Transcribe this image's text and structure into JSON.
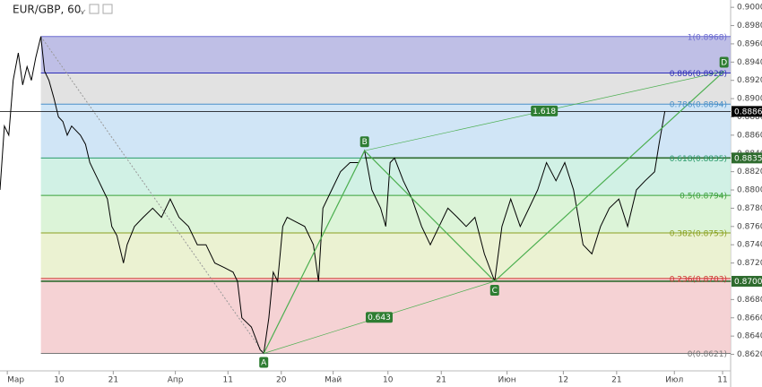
{
  "chart_data": {
    "type": "line",
    "title": "EUR/GBP, 60,",
    "color": "#000000",
    "xlim": [
      0,
      100
    ],
    "ylim": [
      0.8596,
      0.9008
    ],
    "xticks": [
      {
        "value": 1,
        "label": "Мар"
      },
      {
        "value": 8.1,
        "label": "10"
      },
      {
        "value": 15.5,
        "label": "21"
      },
      {
        "value": 24,
        "label": "Апр"
      },
      {
        "value": 31.2,
        "label": "11"
      },
      {
        "value": 38.5,
        "label": "20"
      },
      {
        "value": 45.6,
        "label": "Май"
      },
      {
        "value": 53.1,
        "label": "10"
      },
      {
        "value": 60.4,
        "label": "21"
      },
      {
        "value": 69.4,
        "label": "Июн"
      },
      {
        "value": 77.1,
        "label": "12"
      },
      {
        "value": 84.4,
        "label": "21"
      },
      {
        "value": 92.3,
        "label": "Июл"
      },
      {
        "value": 98.9,
        "label": "11"
      }
    ],
    "yticks": [
      {
        "value": 0.862,
        "label": "0.8620"
      },
      {
        "value": 0.864,
        "label": "0.8640"
      },
      {
        "value": 0.866,
        "label": "0.8660"
      },
      {
        "value": 0.868,
        "label": "0.8680"
      },
      {
        "value": 0.87,
        "label": "0.8700"
      },
      {
        "value": 0.872,
        "label": "0.8720"
      },
      {
        "value": 0.874,
        "label": "0.8740"
      },
      {
        "value": 0.876,
        "label": "0.8760"
      },
      {
        "value": 0.878,
        "label": "0.8780"
      },
      {
        "value": 0.88,
        "label": "0.8800"
      },
      {
        "value": 0.882,
        "label": "0.8820"
      },
      {
        "value": 0.884,
        "label": "0.8840"
      },
      {
        "value": 0.886,
        "label": "0.8860"
      },
      {
        "value": 0.888,
        "label": "0.8880"
      },
      {
        "value": 0.89,
        "label": "0.8900"
      },
      {
        "value": 0.892,
        "label": "0.8920"
      },
      {
        "value": 0.894,
        "label": "0.8940"
      },
      {
        "value": 0.896,
        "label": "0.8960"
      },
      {
        "value": 0.898,
        "label": "0.8980"
      },
      {
        "value": 0.9,
        "label": "0.9000"
      }
    ],
    "x": [
      0,
      0.6,
      1.2,
      1.8,
      2.5,
      3.1,
      3.7,
      4.3,
      4.9,
      5.6,
      6.1,
      6.7,
      7.4,
      8,
      8.6,
      9.2,
      9.8,
      11,
      11.7,
      12.3,
      12.9,
      13.5,
      14.1,
      14.7,
      15.3,
      16,
      16.6,
      16.9,
      17.4,
      18.4,
      19.6,
      20.9,
      22.1,
      23.3,
      23.9,
      24.5,
      25.8,
      27,
      28.2,
      29.4,
      30.7,
      31.9,
      32.5,
      33.1,
      34.4,
      35.6,
      36.1,
      36.8,
      37.4,
      38,
      38.7,
      39.3,
      40.5,
      41.7,
      42.9,
      43.6,
      44.2,
      45.4,
      46.6,
      47.9,
      49.1,
      49.9,
      50.9,
      52.1,
      52.8,
      53.4,
      54,
      55.2,
      56.4,
      57.7,
      58.9,
      60.1,
      61.3,
      62.6,
      63.8,
      65,
      66.3,
      67.7,
      68.7,
      69.9,
      71.2,
      72.4,
      73.6,
      74.8,
      76.1,
      77.3,
      78.5,
      79.8,
      81,
      82.2,
      83.4,
      84.7,
      85.9,
      87.1,
      88.3,
      89.6,
      90.2,
      91
    ],
    "values": [
      0.88,
      0.887,
      0.886,
      0.892,
      0.895,
      0.8915,
      0.8935,
      0.892,
      0.8945,
      0.8968,
      0.893,
      0.892,
      0.89,
      0.888,
      0.8875,
      0.886,
      0.887,
      0.886,
      0.885,
      0.883,
      0.882,
      0.881,
      0.88,
      0.879,
      0.876,
      0.875,
      0.873,
      0.872,
      0.874,
      0.876,
      0.877,
      0.878,
      0.877,
      0.879,
      0.878,
      0.877,
      0.876,
      0.874,
      0.874,
      0.872,
      0.8715,
      0.871,
      0.87,
      0.866,
      0.865,
      0.8625,
      0.8621,
      0.866,
      0.871,
      0.87,
      0.876,
      0.877,
      0.8765,
      0.876,
      0.874,
      0.87,
      0.878,
      0.88,
      0.882,
      0.883,
      0.883,
      0.8843,
      0.88,
      0.878,
      0.876,
      0.883,
      0.8835,
      0.881,
      0.879,
      0.876,
      0.874,
      0.876,
      0.878,
      0.877,
      0.876,
      0.877,
      0.873,
      0.87,
      0.876,
      0.879,
      0.876,
      0.878,
      0.88,
      0.883,
      0.881,
      0.883,
      0.88,
      0.874,
      0.873,
      0.876,
      0.878,
      0.879,
      0.876,
      0.88,
      0.881,
      0.882,
      0.885,
      0.8886
    ],
    "fib_x": [
      5.6,
      100
    ],
    "fib_levels": [
      {
        "label": "1(0.8968)",
        "price": 0.8968,
        "color": "#6a6ad0",
        "zone_color": "#b4b4e2"
      },
      {
        "label": "0.886(0.8928)",
        "price": 0.8928,
        "color": "#2e2eb8",
        "zone_color": "#dddddd"
      },
      {
        "label": "0.786(0.8894)",
        "price": 0.8894,
        "color": "#4a90c8",
        "zone_color": "#c8e0f4"
      },
      {
        "label": "0.618(0.8835)",
        "price": 0.8835,
        "color": "#2a9a6a",
        "zone_color": "#c9efe1"
      },
      {
        "label": "0.5(0.8794)",
        "price": 0.8794,
        "color": "#3aa03a",
        "zone_color": "#d6f2d1"
      },
      {
        "label": "0.382(0.8753)",
        "price": 0.8753,
        "color": "#8aa020",
        "zone_color": "#e7f0ca"
      },
      {
        "label": "0.236(0.8703)",
        "price": 0.8703,
        "color": "#d03030",
        "zone_color": "#f3cacd"
      },
      {
        "label": "0(0.8621)",
        "price": 0.8621,
        "color": "#777777"
      }
    ],
    "pattern": {
      "color": "#4caf50",
      "points": [
        {
          "label": "A",
          "x": 36.1,
          "price": 0.8621
        },
        {
          "label": "B",
          "x": 49.9,
          "price": 0.8843
        },
        {
          "label": "C",
          "x": 67.7,
          "price": 0.87
        },
        {
          "label": "D",
          "x": 99.1,
          "price": 0.893
        }
      ],
      "ratios": [
        "0.643",
        "1.618"
      ]
    },
    "price_labels": [
      {
        "value": 0.8886,
        "label": "0.8886",
        "color": "#000000"
      },
      {
        "value": 0.8835,
        "label": "0.8835",
        "color": "#2e6b2e"
      },
      {
        "value": 0.87,
        "label": "0.8700",
        "color": "#2e6b2e"
      }
    ]
  }
}
